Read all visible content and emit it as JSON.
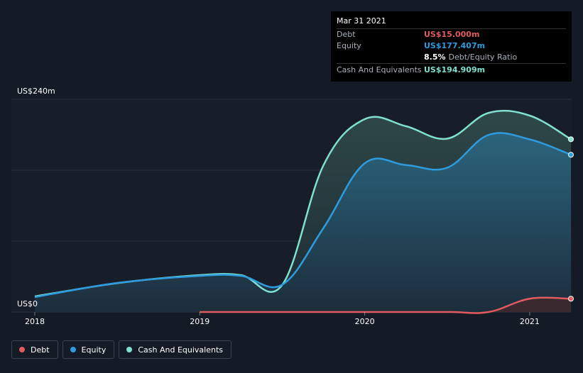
{
  "tooltip": {
    "date": "Mar 31 2021",
    "debt_label": "Debt",
    "debt_value": "US$15.000m",
    "equity_label": "Equity",
    "equity_value": "US$177.407m",
    "ratio_value": "8.5%",
    "ratio_label": "Debt/Equity Ratio",
    "cash_label": "Cash And Equivalents",
    "cash_value": "US$194.909m"
  },
  "legend": {
    "debt": "Debt",
    "equity": "Equity",
    "cash": "Cash And Equivalents"
  },
  "colors": {
    "background": "#151b26",
    "debt": "#e35b5f",
    "equity": "#2e9bde",
    "cash": "#7fe0cf"
  },
  "chart_data": {
    "type": "area",
    "y_axis_labels": [
      "US$240m",
      "US$0"
    ],
    "ylim": [
      0,
      240
    ],
    "xlim": [
      2018.0,
      2021.25
    ],
    "x_ticks": [
      2018,
      2019,
      2020,
      2021
    ],
    "x_tick_labels": [
      "2018",
      "2019",
      "2020",
      "2021"
    ],
    "series": [
      {
        "name": "Cash And Equivalents",
        "points": [
          [
            2018.0,
            17.6
          ],
          [
            2018.5,
            32.6
          ],
          [
            2019.0,
            41.6
          ],
          [
            2019.25,
            41.6
          ],
          [
            2019.5,
            30.6
          ],
          [
            2019.75,
            165.6
          ],
          [
            2020.0,
            217.6
          ],
          [
            2020.25,
            209.6
          ],
          [
            2020.5,
            195.6
          ],
          [
            2020.75,
            224.6
          ],
          [
            2021.0,
            221.6
          ],
          [
            2021.25,
            194.9
          ]
        ]
      },
      {
        "name": "Equity",
        "points": [
          [
            2018.0,
            16.8
          ],
          [
            2018.5,
            32.8
          ],
          [
            2019.0,
            40.8
          ],
          [
            2019.25,
            40.8
          ],
          [
            2019.5,
            30.8
          ],
          [
            2019.75,
            94.8
          ],
          [
            2020.0,
            167.8
          ],
          [
            2020.25,
            165.8
          ],
          [
            2020.5,
            162.8
          ],
          [
            2020.75,
            199.8
          ],
          [
            2021.0,
            194.8
          ],
          [
            2021.25,
            177.4
          ]
        ]
      },
      {
        "name": "Debt",
        "points": [
          [
            2019.0,
            0.0
          ],
          [
            2019.5,
            0.0
          ],
          [
            2020.0,
            0.0
          ],
          [
            2020.5,
            0.0
          ],
          [
            2020.75,
            0.0
          ],
          [
            2021.0,
            15.0
          ],
          [
            2021.25,
            15.0
          ]
        ]
      }
    ]
  }
}
